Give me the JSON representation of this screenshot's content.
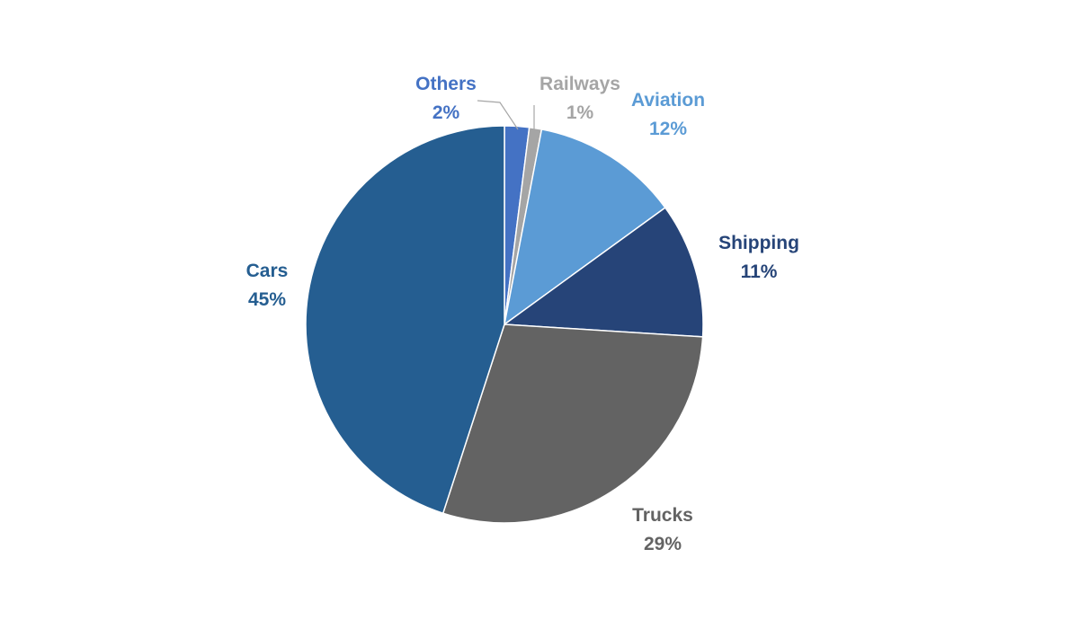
{
  "chart_data": {
    "type": "pie",
    "title": "",
    "slices": [
      {
        "label": "Others",
        "value": 2,
        "value_label": "2%",
        "color": "#4472C4",
        "label_color": "#4472C4"
      },
      {
        "label": "Railways",
        "value": 1,
        "value_label": "1%",
        "color": "#A5A5A5",
        "label_color": "#A5A5A5"
      },
      {
        "label": "Aviation",
        "value": 12,
        "value_label": "12%",
        "color": "#5B9BD5",
        "label_color": "#5B9BD5"
      },
      {
        "label": "Shipping",
        "value": 11,
        "value_label": "11%",
        "color": "#264478",
        "label_color": "#264478"
      },
      {
        "label": "Trucks",
        "value": 29,
        "value_label": "29%",
        "color": "#636363",
        "label_color": "#636363"
      },
      {
        "label": "Cars",
        "value": 45,
        "value_label": "45%",
        "color": "#255E91",
        "label_color": "#255E91"
      }
    ],
    "start_angle": "12 o'clock",
    "direction": "clockwise",
    "legend": "none",
    "data_labels": "outside, category and percentage"
  }
}
